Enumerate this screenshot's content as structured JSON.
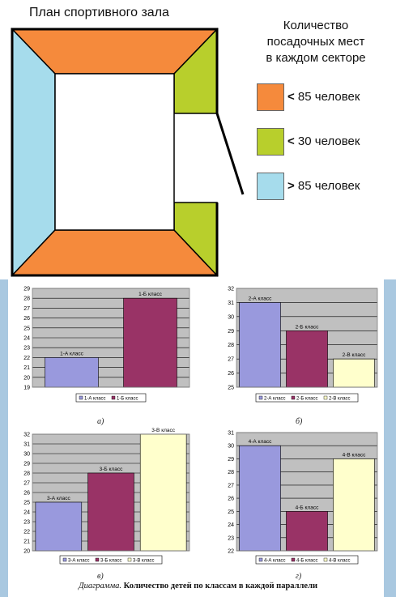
{
  "hall": {
    "title": "План спортивного зала",
    "legend_heading": [
      "Количество",
      "посадочных мест",
      "в каждом секторе"
    ],
    "legend": [
      {
        "sign": "<",
        "label": " 85 человек",
        "color": "#f58a3c"
      },
      {
        "sign": "<",
        "label": " 30 человек",
        "color": "#b8cf2c"
      },
      {
        "sign": ">",
        "label": " 85 человек",
        "color": "#a6dcec"
      }
    ],
    "colors": {
      "top_bottom": "#f58a3c",
      "left": "#a6dcec",
      "right": "#b8cf2c",
      "outline": "#000000"
    }
  },
  "chart_data": [
    {
      "type": "bar",
      "panel": "а)",
      "categories": [
        "1-А класс",
        "1-Б класс"
      ],
      "values": [
        22,
        28
      ],
      "colors": [
        "#9999dd",
        "#993366"
      ],
      "ylim": [
        19,
        29
      ],
      "yticks": [
        19,
        20,
        21,
        22,
        23,
        24,
        25,
        26,
        27,
        28,
        29
      ],
      "legend": [
        "1-А класс",
        "1-Б класс"
      ],
      "grid": true
    },
    {
      "type": "bar",
      "panel": "б)",
      "categories": [
        "2-А класс",
        "2-Б класс",
        "2-В класс"
      ],
      "values": [
        31,
        29,
        27
      ],
      "colors": [
        "#9999dd",
        "#993366",
        "#ffffcc"
      ],
      "ylim": [
        25,
        32
      ],
      "yticks": [
        25,
        26,
        27,
        28,
        29,
        30,
        31,
        32
      ],
      "legend": [
        "2-А класс",
        "2-Б класс",
        "2-В класс"
      ],
      "grid": true
    },
    {
      "type": "bar",
      "panel": "в)",
      "categories": [
        "3-А класс",
        "3-Б класс",
        "3-В класс"
      ],
      "values": [
        25,
        28,
        32
      ],
      "colors": [
        "#9999dd",
        "#993366",
        "#ffffcc"
      ],
      "ylim": [
        20,
        32
      ],
      "yticks": [
        20,
        21,
        22,
        23,
        24,
        25,
        26,
        27,
        28,
        29,
        30,
        31,
        32
      ],
      "legend": [
        "3-А класс",
        "3-Б класс",
        "3-В класс"
      ],
      "grid": true
    },
    {
      "type": "bar",
      "panel": "г)",
      "categories": [
        "4-А класс",
        "4-Б класс",
        "4-В класс"
      ],
      "values": [
        30,
        25,
        29
      ],
      "colors": [
        "#9999dd",
        "#993366",
        "#ffffcc"
      ],
      "ylim": [
        22,
        31
      ],
      "yticks": [
        22,
        23,
        24,
        25,
        26,
        27,
        28,
        29,
        30,
        31
      ],
      "legend": [
        "4-А класс",
        "4-Б класс",
        "4-В класс"
      ],
      "grid": true
    }
  ],
  "caption": {
    "prefix": "Диаграмма.",
    "text": " Количество детей по классам в каждой параллели"
  }
}
